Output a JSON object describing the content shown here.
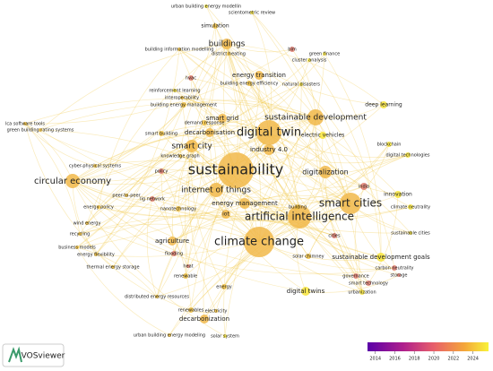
{
  "nodes": [
    {
      "label": "urban building energy modellin"
    },
    {
      "label": "scientometric review"
    },
    {
      "label": "simulation"
    },
    {
      "label": "buildings"
    },
    {
      "label": "building information modelling"
    },
    {
      "label": "district heating"
    },
    {
      "label": "bim"
    },
    {
      "label": "green finance"
    },
    {
      "label": "cluster analysis"
    },
    {
      "label": "hvac"
    },
    {
      "label": "energy transition"
    },
    {
      "label": "building energy efficiency"
    },
    {
      "label": "natural disasters"
    },
    {
      "label": "reinforcement learning"
    },
    {
      "label": "interoperability"
    },
    {
      "label": "building energy management"
    },
    {
      "label": "deep learning"
    },
    {
      "label": "sustainable development"
    },
    {
      "label": "smart grid"
    },
    {
      "label": "digital twin"
    },
    {
      "label": "demand response"
    },
    {
      "label": "smart building"
    },
    {
      "label": "decarbonisation"
    },
    {
      "label": "electric vehicles"
    },
    {
      "label": "blockchain"
    },
    {
      "label": "lca software tools"
    },
    {
      "label": "green building rating systems"
    },
    {
      "label": "smart city"
    },
    {
      "label": "industry 4.0"
    },
    {
      "label": "knowledge graph"
    },
    {
      "label": "digital technologies"
    },
    {
      "label": "cyber-physical systems"
    },
    {
      "label": "policy"
    },
    {
      "label": "sustainability"
    },
    {
      "label": "digitalization"
    },
    {
      "label": "circular economy"
    },
    {
      "label": "internet of things"
    },
    {
      "label": "peer-to-peer"
    },
    {
      "label": "lig network"
    },
    {
      "label": "india"
    },
    {
      "label": "smart cities"
    },
    {
      "label": "innovation"
    },
    {
      "label": "energy policy"
    },
    {
      "label": "nanotechnology"
    },
    {
      "label": "energy management"
    },
    {
      "label": "climate neutrality"
    },
    {
      "label": "wind energy"
    },
    {
      "label": "iot"
    },
    {
      "label": "artificial intelligence"
    },
    {
      "label": "building"
    },
    {
      "label": "cities"
    },
    {
      "label": "sustainable cities"
    },
    {
      "label": "recycling"
    },
    {
      "label": "business models"
    },
    {
      "label": "agriculture"
    },
    {
      "label": "energy flexibility"
    },
    {
      "label": "climate change"
    },
    {
      "label": "sustainable development goals"
    },
    {
      "label": "flooding"
    },
    {
      "label": "heat"
    },
    {
      "label": "thermal energy storage"
    },
    {
      "label": "solar chimney"
    },
    {
      "label": "carbon neutrality"
    },
    {
      "label": "renewable"
    },
    {
      "label": "storage"
    },
    {
      "label": "governance"
    },
    {
      "label": "smart technology"
    },
    {
      "label": "energy"
    },
    {
      "label": "digital twins"
    },
    {
      "label": "urbanization"
    },
    {
      "label": "distributed energy resources"
    },
    {
      "label": "renewables"
    },
    {
      "label": "electricity"
    },
    {
      "label": "decarbonization"
    },
    {
      "label": "urban building energy modeling"
    },
    {
      "label": "solar system"
    }
  ],
  "legend": {
    "range": [
      2013.2,
      2025.6
    ],
    "ticks": [
      2014,
      2016,
      2018,
      2020,
      2022,
      2024
    ]
  },
  "logo": {
    "text": "VOSviewer"
  }
}
